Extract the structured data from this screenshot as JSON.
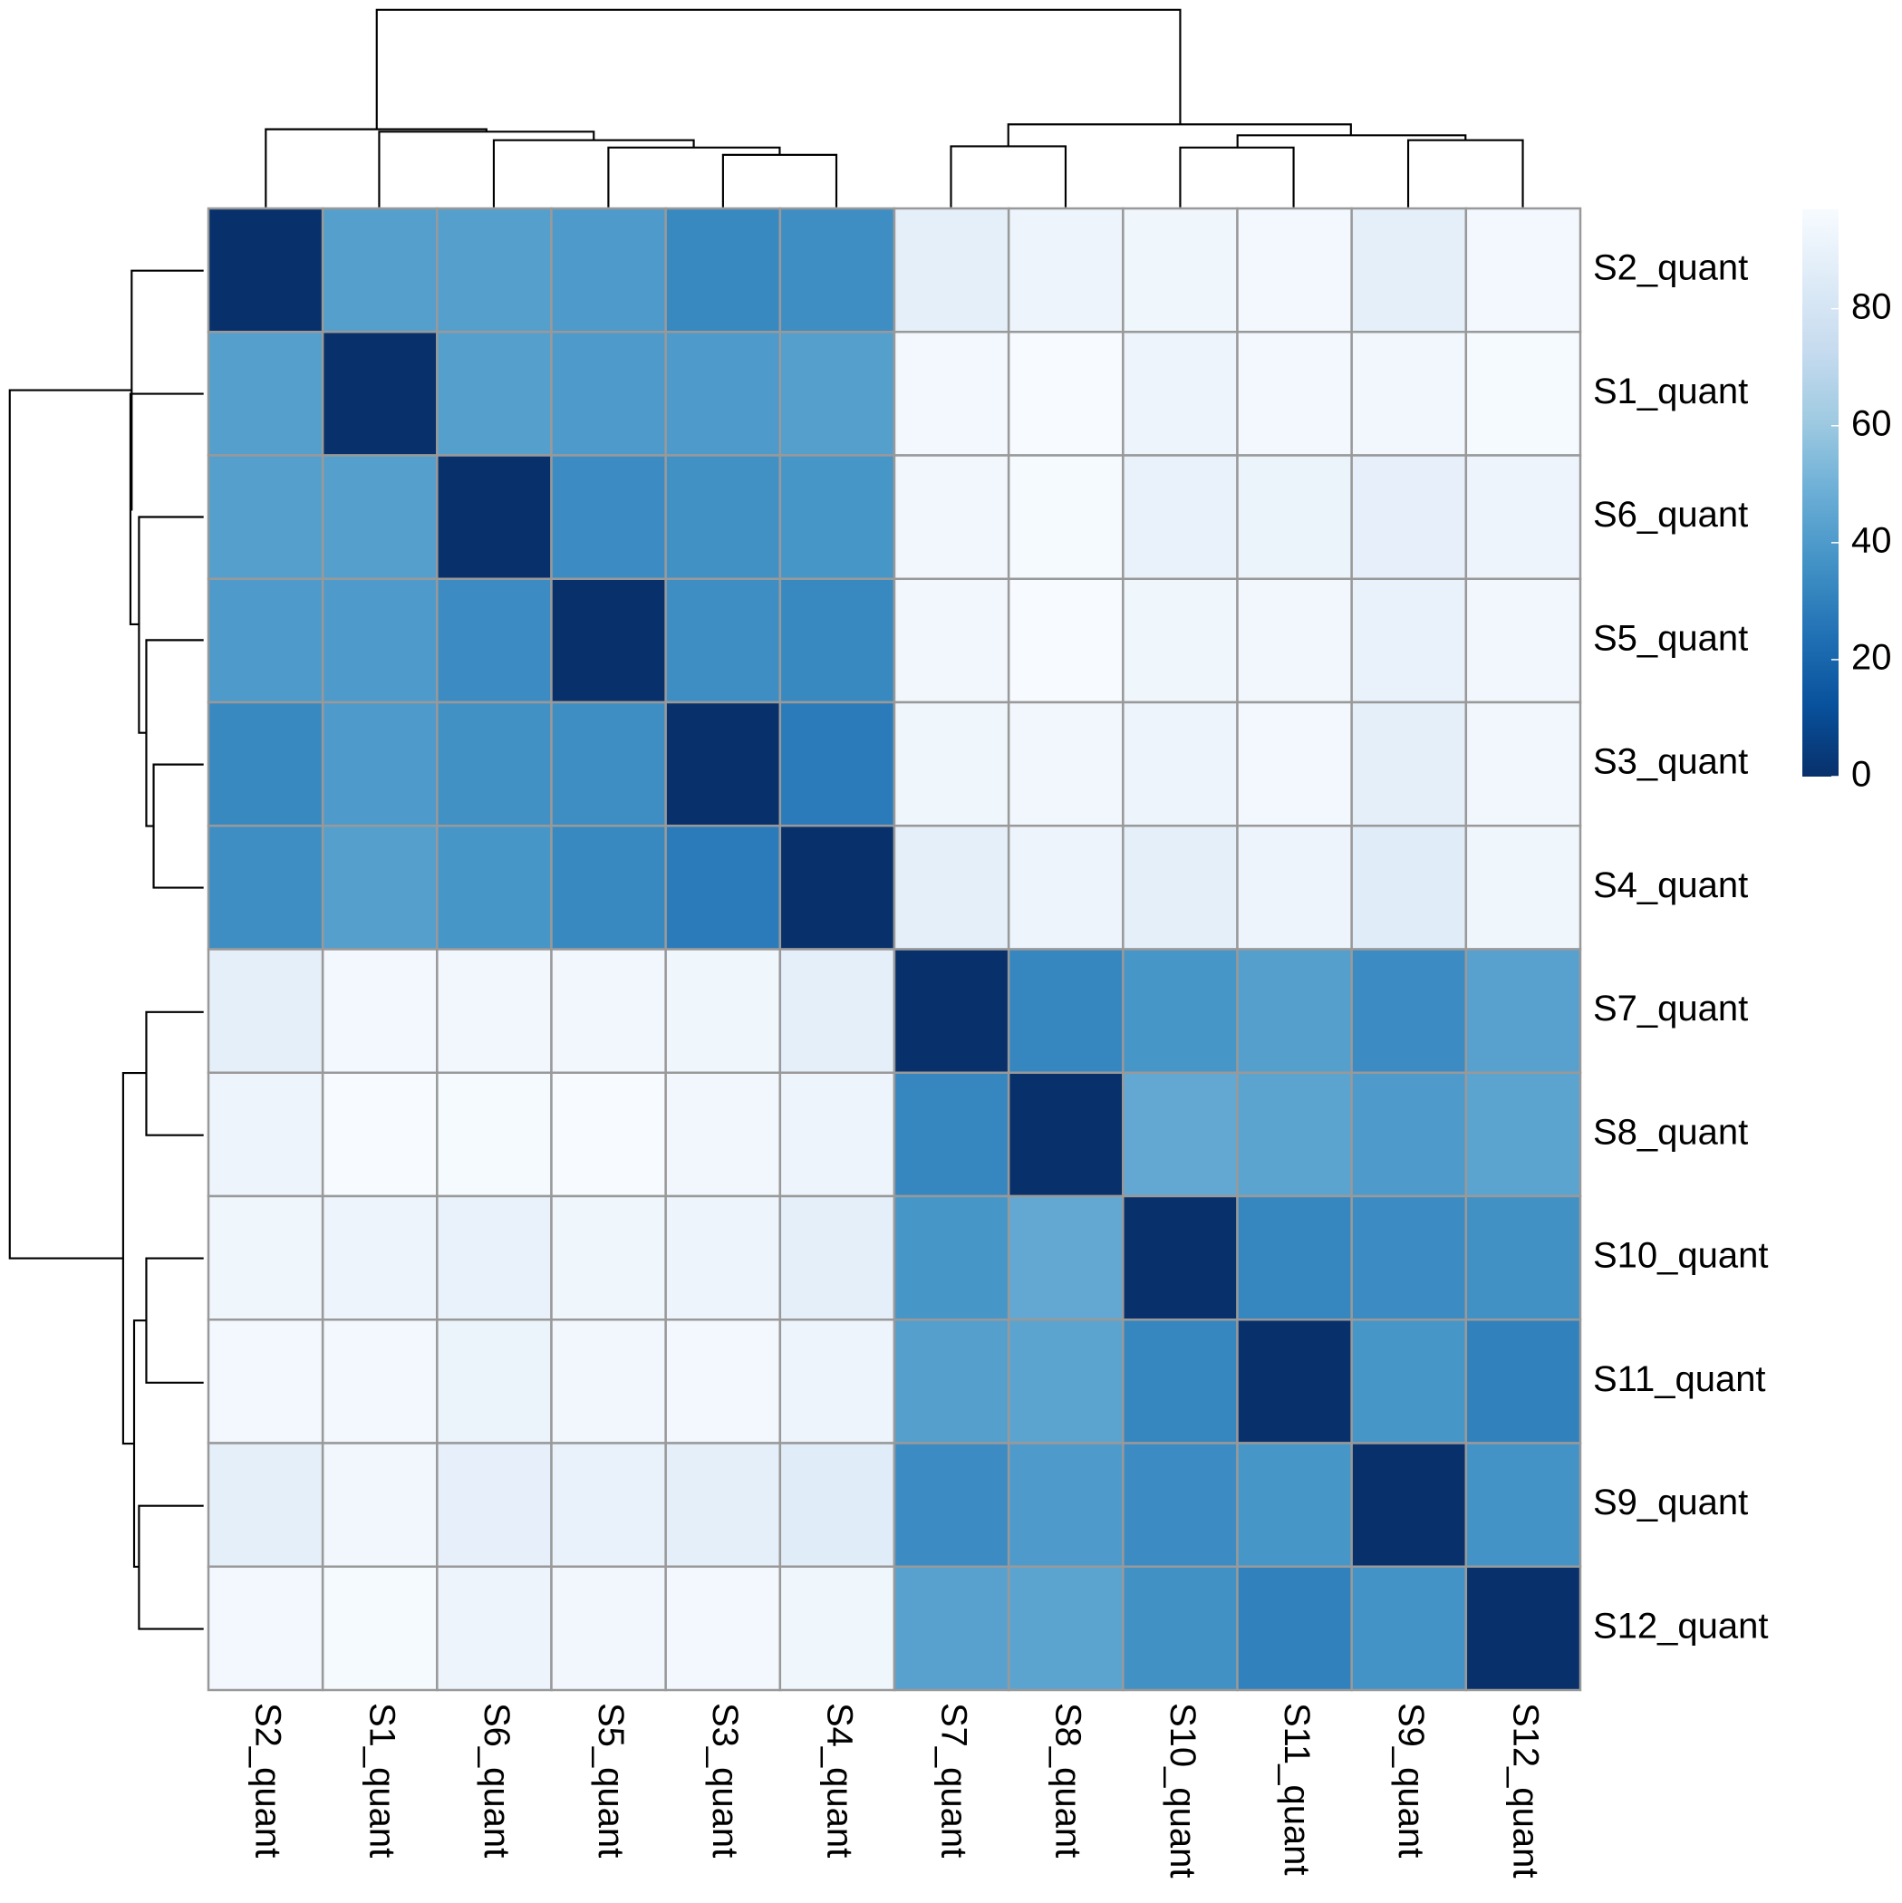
{
  "chart_data": {
    "type": "heatmap",
    "x": [
      "S2_quant",
      "S1_quant",
      "S6_quant",
      "S5_quant",
      "S3_quant",
      "S4_quant",
      "S7_quant",
      "S8_quant",
      "S10_quant",
      "S11_quant",
      "S9_quant",
      "S12_quant"
    ],
    "y": [
      "S2_quant",
      "S1_quant",
      "S6_quant",
      "S5_quant",
      "S3_quant",
      "S4_quant",
      "S7_quant",
      "S8_quant",
      "S10_quant",
      "S11_quant",
      "S9_quant",
      "S12_quant"
    ],
    "values": [
      [
        0,
        42,
        42,
        40,
        33,
        35,
        88,
        92,
        93,
        95,
        88,
        95
      ],
      [
        42,
        0,
        42,
        40,
        40,
        42,
        95,
        97,
        92,
        95,
        94,
        96
      ],
      [
        42,
        42,
        0,
        34,
        36,
        38,
        94,
        96,
        90,
        91,
        89,
        92
      ],
      [
        40,
        40,
        34,
        0,
        35,
        33,
        94,
        97,
        93,
        94,
        90,
        94
      ],
      [
        33,
        40,
        36,
        35,
        0,
        28,
        93,
        94,
        92,
        95,
        88,
        94
      ],
      [
        35,
        42,
        38,
        33,
        28,
        0,
        88,
        92,
        88,
        92,
        86,
        93
      ],
      [
        88,
        95,
        94,
        94,
        93,
        88,
        0,
        32,
        38,
        42,
        34,
        43
      ],
      [
        92,
        97,
        96,
        97,
        94,
        92,
        32,
        0,
        46,
        44,
        40,
        44
      ],
      [
        93,
        92,
        90,
        93,
        92,
        88,
        38,
        46,
        0,
        32,
        34,
        36
      ],
      [
        95,
        95,
        91,
        94,
        95,
        92,
        42,
        44,
        32,
        0,
        38,
        30
      ],
      [
        88,
        94,
        89,
        90,
        88,
        86,
        34,
        40,
        34,
        38,
        0,
        37
      ],
      [
        95,
        96,
        92,
        94,
        95,
        93,
        43,
        44,
        36,
        30,
        37,
        0
      ]
    ],
    "zlim": [
      0,
      97
    ],
    "zticks": [
      0,
      20,
      40,
      60,
      80
    ],
    "colorscale": [
      "#08306b",
      "#08519c",
      "#2171b5",
      "#4292c6",
      "#6baed6",
      "#9ecae1",
      "#c6dbef",
      "#deebf7",
      "#f7fbff"
    ],
    "cell_border_color": "#999999"
  }
}
